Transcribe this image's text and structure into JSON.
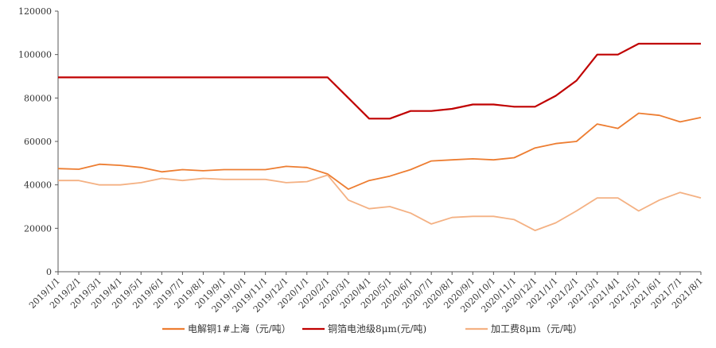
{
  "chart_data": {
    "type": "line",
    "title": "",
    "xlabel": "",
    "ylabel": "",
    "ylim": [
      0,
      120000
    ],
    "yticks": [
      "0",
      "20000",
      "40000",
      "60000",
      "80000",
      "100000",
      "120000"
    ],
    "categories": [
      "2019/1/1",
      "2019/2/1",
      "2019/3/1",
      "2019/4/1",
      "2019/5/1",
      "2019/6/1",
      "2019/7/1",
      "2019/8/1",
      "2019/9/1",
      "2019/10/1",
      "2019/11/1",
      "2019/12/1",
      "2020/1/1",
      "2020/2/1",
      "2020/3/1",
      "2020/4/1",
      "2020/5/1",
      "2020/6/1",
      "2020/7/1",
      "2020/8/1",
      "2020/9/1",
      "2020/10/1",
      "2020/11/1",
      "2020/12/1",
      "2021/1/1",
      "2021/2/1",
      "2021/3/1",
      "2021/4/1",
      "2021/5/1",
      "2021/6/1",
      "2021/7/1",
      "2021/8/1"
    ],
    "grid": false,
    "legend_position": "bottom",
    "series": [
      {
        "name": "电解铜1#上海（元/吨）",
        "color": "#ed7d31",
        "values": [
          47500,
          47200,
          49500,
          49000,
          48000,
          46000,
          47000,
          46500,
          47000,
          47000,
          47000,
          48500,
          48000,
          45000,
          38000,
          42000,
          44000,
          47000,
          51000,
          51500,
          52000,
          51500,
          52500,
          57000,
          59000,
          60000,
          68000,
          66000,
          73000,
          72000,
          69000,
          71000
        ]
      },
      {
        "name": "铜箔电池级8μm(元/吨)",
        "color": "#c00000",
        "values": [
          89500,
          89500,
          89500,
          89500,
          89500,
          89500,
          89500,
          89500,
          89500,
          89500,
          89500,
          89500,
          89500,
          89500,
          80000,
          70500,
          70500,
          74000,
          74000,
          75000,
          77000,
          77000,
          76000,
          76000,
          81000,
          88000,
          100000,
          100000,
          105000,
          105000,
          105000,
          105000
        ]
      },
      {
        "name": "加工费8μm（元/吨）",
        "color": "#f4b183",
        "values": [
          42000,
          42000,
          40000,
          40000,
          41000,
          43000,
          42000,
          43000,
          42500,
          42500,
          42500,
          41000,
          41500,
          44500,
          33000,
          29000,
          30000,
          27000,
          22000,
          25000,
          25500,
          25500,
          24000,
          19000,
          22500,
          28000,
          34000,
          34000,
          28000,
          33000,
          36500,
          34000
        ]
      }
    ]
  }
}
